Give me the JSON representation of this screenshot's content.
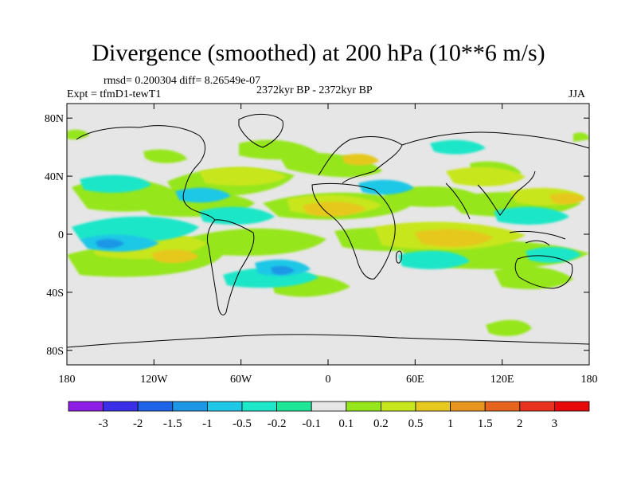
{
  "title": "Divergence (smoothed) at 200 hPa (10**6 m/s)",
  "stats": "rmsd= 0.200304 diff= 8.26549e-07",
  "experiment": "Expt = tfmD1-tewT1",
  "period": "2372kyr BP - 2372kyr BP",
  "season": "JJA",
  "lat_labels": [
    "80N",
    "40N",
    "0",
    "40S",
    "80S"
  ],
  "lon_labels": [
    "180",
    "120W",
    "60W",
    "0",
    "60E",
    "120E",
    "180"
  ],
  "colorbar": {
    "labels": [
      "-3",
      "-2",
      "-1.5",
      "-1",
      "-0.5",
      "-0.2",
      "-0.1",
      "0.1",
      "0.2",
      "0.5",
      "1",
      "1.5",
      "2",
      "3"
    ],
    "colors": [
      "#8c1ee6",
      "#3a2ee6",
      "#1e64e6",
      "#1e96e6",
      "#1ec8e6",
      "#1ee6c8",
      "#1ee696",
      "#e6e6e6",
      "#96e61e",
      "#c8e61e",
      "#e6c81e",
      "#e6961e",
      "#e6641e",
      "#e6321e",
      "#e60a0a"
    ]
  },
  "colors": {
    "background": "#e6e6e6",
    "coast": "#000000"
  }
}
